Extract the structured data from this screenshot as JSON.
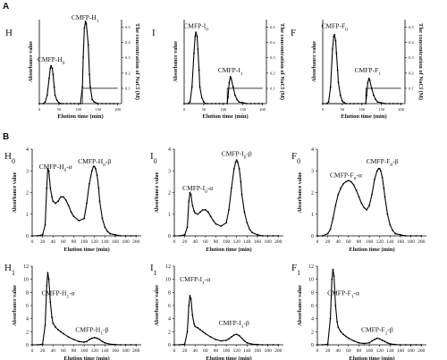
{
  "panels": [
    {
      "letter": "A"
    },
    {
      "letter": "B"
    }
  ],
  "chart_data": [
    {
      "type": "line",
      "panel": "A",
      "letter": "H",
      "title": "",
      "xlabel": "Elution time (min)",
      "ylabel": "Absorbance value",
      "y2label": "The concentration of NaCl (M)",
      "xticks": [
        "0",
        "50",
        "100",
        "150",
        "200"
      ],
      "y2ticks": [
        "0.5",
        "0.4",
        "0.3",
        "0.2",
        "0.1"
      ],
      "xlim": [
        0,
        210
      ],
      "ylim": [
        0,
        1
      ],
      "y2lim": [
        0,
        0.55
      ],
      "series": [
        {
          "x": [
            0,
            10,
            15,
            20,
            25,
            28,
            30,
            33,
            35,
            38,
            40,
            45,
            50,
            55,
            60,
            70,
            80,
            90,
            100,
            105,
            110,
            112,
            115,
            118,
            120,
            125,
            128,
            130,
            135,
            140,
            150,
            160,
            170,
            180,
            190,
            200
          ],
          "y": [
            0,
            0,
            0.02,
            0.1,
            0.3,
            0.42,
            0.45,
            0.42,
            0.35,
            0.2,
            0.1,
            0.04,
            0.01,
            0,
            0,
            0,
            0,
            0,
            0,
            0,
            0.2,
            0.55,
            0.9,
            0.98,
            0.95,
            0.7,
            0.35,
            0.2,
            0.05,
            0.02,
            0,
            0,
            0,
            0,
            0,
            0
          ]
        }
      ],
      "salt": {
        "x": [
          0,
          110,
          110,
          200
        ],
        "y": [
          0,
          0,
          0.1,
          0.1
        ]
      },
      "annotations": [
        {
          "text": "CMFP-H",
          "sub": "0",
          "x": 30,
          "y": 0.5
        },
        {
          "text": "CMFP-H",
          "sub": "1",
          "x": 117,
          "y": 1.0
        }
      ]
    },
    {
      "type": "line",
      "panel": "A",
      "letter": "I",
      "title": "",
      "xlabel": "Elution time (min)",
      "ylabel": "Absorbance value",
      "y2label": "The concentration of NaCl (M)",
      "xticks": [
        "0",
        "50",
        "100",
        "150",
        "200"
      ],
      "y2ticks": [
        "0.5",
        "0.4",
        "0.3",
        "0.2",
        "0.1"
      ],
      "xlim": [
        0,
        210
      ],
      "ylim": [
        0,
        1
      ],
      "y2lim": [
        0,
        0.55
      ],
      "series": [
        {
          "x": [
            0,
            10,
            15,
            20,
            25,
            28,
            30,
            33,
            35,
            38,
            40,
            45,
            50,
            55,
            60,
            70,
            80,
            90,
            100,
            110,
            112,
            115,
            118,
            120,
            125,
            130,
            135,
            140,
            150,
            160,
            170,
            180,
            190,
            200
          ],
          "y": [
            0,
            0,
            0.02,
            0.2,
            0.6,
            0.8,
            0.85,
            0.8,
            0.65,
            0.4,
            0.2,
            0.07,
            0.02,
            0,
            0,
            0,
            0,
            0,
            0,
            0,
            0.08,
            0.25,
            0.32,
            0.3,
            0.2,
            0.1,
            0.05,
            0.02,
            0.01,
            0,
            0,
            0,
            0,
            0
          ]
        }
      ],
      "salt": {
        "x": [
          0,
          110,
          110,
          200
        ],
        "y": [
          0,
          0,
          0.1,
          0.1
        ]
      },
      "annotations": [
        {
          "text": "CMFP-I",
          "sub": "0",
          "x": 30,
          "y": 0.9
        },
        {
          "text": "CMFP-I",
          "sub": "1",
          "x": 118,
          "y": 0.37
        }
      ]
    },
    {
      "type": "line",
      "panel": "A",
      "letter": "F",
      "title": "",
      "xlabel": "Elution time (min)",
      "ylabel": "Absorbance value",
      "y2label": "The concentration of NaCl (M)",
      "xticks": [
        "0",
        "50",
        "100",
        "150",
        "200"
      ],
      "y2ticks": [
        "0.5",
        "0.4",
        "0.3",
        "0.2",
        "0.1"
      ],
      "xlim": [
        0,
        210
      ],
      "ylim": [
        0,
        1
      ],
      "y2lim": [
        0,
        0.55
      ],
      "series": [
        {
          "x": [
            0,
            10,
            15,
            20,
            25,
            28,
            30,
            33,
            35,
            38,
            40,
            45,
            50,
            55,
            60,
            70,
            80,
            90,
            100,
            110,
            112,
            115,
            118,
            120,
            125,
            130,
            135,
            140,
            150,
            160,
            170,
            180,
            190,
            200
          ],
          "y": [
            0,
            0,
            0.02,
            0.2,
            0.65,
            0.8,
            0.82,
            0.75,
            0.6,
            0.4,
            0.25,
            0.1,
            0.03,
            0.01,
            0,
            0,
            0,
            0,
            0,
            0,
            0.1,
            0.25,
            0.3,
            0.28,
            0.18,
            0.1,
            0.05,
            0.02,
            0.01,
            0,
            0,
            0,
            0,
            0
          ]
        }
      ],
      "salt": {
        "x": [
          0,
          110,
          110,
          200
        ],
        "y": [
          0,
          0,
          0.1,
          0.1
        ]
      },
      "annotations": [
        {
          "text": "CMFP-F",
          "sub": "0",
          "x": 30,
          "y": 0.9
        },
        {
          "text": "CMFP-F",
          "sub": "1",
          "x": 115,
          "y": 0.37
        }
      ]
    },
    {
      "type": "line",
      "panel": "B",
      "letter": "H",
      "letter_sub": "0",
      "xlabel": "Elution time (min)",
      "ylabel": "Absorbance value",
      "xlim": [
        0,
        210
      ],
      "ylim": [
        0,
        4
      ],
      "xticks": [
        0,
        20,
        40,
        60,
        80,
        100,
        120,
        140,
        160,
        180,
        200
      ],
      "yticks": [
        0,
        1,
        2,
        3,
        4
      ],
      "series": [
        {
          "x": [
            0,
            10,
            20,
            25,
            28,
            30,
            32,
            35,
            38,
            40,
            45,
            50,
            55,
            60,
            65,
            70,
            75,
            80,
            90,
            100,
            105,
            110,
            115,
            118,
            120,
            122,
            125,
            128,
            130,
            135,
            140,
            145,
            150,
            160,
            170,
            180,
            190,
            200
          ],
          "y": [
            0,
            0,
            0.05,
            0.5,
            2.2,
            3.1,
            3.0,
            2.2,
            1.8,
            1.6,
            1.5,
            1.6,
            1.8,
            1.8,
            1.65,
            1.4,
            1.1,
            0.9,
            0.7,
            0.8,
            1.5,
            2.4,
            3.0,
            3.2,
            3.2,
            3.1,
            2.8,
            2.2,
            1.6,
            0.8,
            0.4,
            0.2,
            0.1,
            0.05,
            0,
            0,
            0,
            0
          ]
        }
      ],
      "annotations": [
        {
          "text": "CMFP-H",
          "sub": "0",
          "suffix": "-α",
          "x": 45,
          "y": 3.1
        },
        {
          "text": "CMFP-H",
          "sub": "0",
          "suffix": "-β",
          "x": 120,
          "y": 3.35
        }
      ]
    },
    {
      "type": "line",
      "panel": "B",
      "letter": "I",
      "letter_sub": "0",
      "xlabel": "Elution time (min)",
      "ylabel": "Absorbance value",
      "xlim": [
        0,
        210
      ],
      "ylim": [
        0,
        4
      ],
      "xticks": [
        0,
        20,
        40,
        60,
        80,
        100,
        120,
        140,
        160,
        180,
        200
      ],
      "yticks": [
        0,
        1,
        2,
        3,
        4
      ],
      "series": [
        {
          "x": [
            0,
            10,
            20,
            25,
            28,
            30,
            32,
            35,
            38,
            40,
            45,
            50,
            55,
            60,
            65,
            70,
            75,
            80,
            90,
            100,
            105,
            110,
            115,
            118,
            120,
            122,
            125,
            128,
            130,
            135,
            140,
            145,
            150,
            160,
            170,
            180,
            190,
            200
          ],
          "y": [
            0,
            0,
            0.05,
            0.4,
            1.6,
            2.0,
            1.9,
            1.4,
            1.15,
            1.05,
            1.0,
            1.1,
            1.2,
            1.2,
            1.1,
            0.9,
            0.7,
            0.55,
            0.45,
            0.6,
            1.2,
            2.2,
            3.1,
            3.4,
            3.5,
            3.4,
            3.1,
            2.5,
            1.9,
            1.1,
            0.6,
            0.3,
            0.15,
            0.05,
            0,
            0,
            0,
            0
          ]
        }
      ],
      "annotations": [
        {
          "text": "CMFP-I",
          "sub": "0",
          "suffix": "-α",
          "x": 45,
          "y": 2.1
        },
        {
          "text": "CMFP-I",
          "sub": "0",
          "suffix": "-β",
          "x": 120,
          "y": 3.7
        }
      ]
    },
    {
      "type": "line",
      "panel": "B",
      "letter": "F",
      "letter_sub": "0",
      "xlabel": "Elution time (min)",
      "ylabel": "Absorbance value",
      "xlim": [
        0,
        210
      ],
      "ylim": [
        0,
        4
      ],
      "xticks": [
        0,
        20,
        40,
        60,
        80,
        100,
        120,
        140,
        160,
        180,
        200
      ],
      "yticks": [
        0,
        1,
        2,
        3,
        4
      ],
      "series": [
        {
          "x": [
            0,
            10,
            20,
            25,
            30,
            35,
            40,
            45,
            50,
            55,
            60,
            65,
            70,
            75,
            80,
            85,
            90,
            95,
            100,
            105,
            110,
            115,
            118,
            120,
            122,
            125,
            128,
            130,
            135,
            140,
            145,
            150,
            160,
            170,
            180,
            190,
            200
          ],
          "y": [
            0,
            0,
            0.1,
            0.3,
            0.8,
            1.4,
            1.9,
            2.2,
            2.4,
            2.5,
            2.55,
            2.5,
            2.35,
            2.1,
            1.8,
            1.5,
            1.3,
            1.2,
            1.4,
            1.9,
            2.6,
            3.0,
            3.1,
            3.1,
            3.0,
            2.7,
            2.2,
            1.8,
            1.0,
            0.5,
            0.25,
            0.1,
            0.05,
            0,
            0,
            0,
            0
          ]
        }
      ],
      "annotations": [
        {
          "text": "CMFP-F",
          "sub": "0",
          "suffix": "-α",
          "x": 55,
          "y": 2.7
        },
        {
          "text": "CMFP-F",
          "sub": "0",
          "suffix": "-β",
          "x": 125,
          "y": 3.35
        }
      ]
    },
    {
      "type": "line",
      "panel": "B",
      "letter": "H",
      "letter_sub": "1",
      "xlabel": "Elution time (min)",
      "ylabel": "Absorbance value",
      "xlim": [
        0,
        210
      ],
      "ylim": [
        0,
        12
      ],
      "xticks": [
        0,
        20,
        40,
        60,
        80,
        100,
        120,
        140,
        160,
        180,
        200
      ],
      "yticks": [
        0,
        2,
        4,
        6,
        8,
        10,
        12
      ],
      "series": [
        {
          "x": [
            0,
            10,
            20,
            25,
            28,
            30,
            32,
            35,
            38,
            40,
            45,
            50,
            55,
            60,
            70,
            80,
            90,
            100,
            105,
            110,
            115,
            120,
            125,
            130,
            135,
            140,
            150,
            160,
            170,
            180,
            190,
            200
          ],
          "y": [
            0,
            0,
            0.1,
            3,
            9,
            11,
            10,
            6.5,
            4.2,
            3.3,
            2.7,
            2.3,
            2.0,
            1.7,
            1.2,
            0.8,
            0.5,
            0.4,
            0.5,
            0.8,
            1.0,
            1.1,
            1.0,
            0.8,
            0.5,
            0.3,
            0.1,
            0.05,
            0,
            0,
            0,
            0
          ]
        }
      ],
      "annotations": [
        {
          "text": "CMFP-H",
          "sub": "1",
          "suffix": "-α",
          "x": 50,
          "y": 7.6
        },
        {
          "text": "CMFP-H",
          "sub": "1",
          "suffix": "-β",
          "x": 115,
          "y": 2.0
        }
      ]
    },
    {
      "type": "line",
      "panel": "B",
      "letter": "I",
      "letter_sub": "1",
      "xlabel": "Elution time (min)",
      "ylabel": "Absorbance value",
      "xlim": [
        0,
        210
      ],
      "ylim": [
        0,
        12
      ],
      "xticks": [
        0,
        20,
        40,
        60,
        80,
        100,
        120,
        140,
        160,
        180,
        200
      ],
      "yticks": [
        0,
        2,
        4,
        6,
        8,
        10,
        12
      ],
      "series": [
        {
          "x": [
            0,
            10,
            20,
            25,
            28,
            30,
            32,
            35,
            38,
            40,
            45,
            50,
            55,
            60,
            70,
            80,
            90,
            100,
            105,
            110,
            115,
            120,
            125,
            130,
            135,
            140,
            150,
            160,
            170,
            180,
            190,
            200
          ],
          "y": [
            0,
            0,
            0.1,
            2,
            6,
            7.5,
            7,
            4.5,
            3.2,
            2.8,
            2.6,
            2.3,
            2.0,
            1.7,
            1.2,
            0.8,
            0.6,
            0.7,
            0.9,
            1.2,
            1.5,
            1.6,
            1.4,
            1.0,
            0.6,
            0.3,
            0.1,
            0.05,
            0,
            0,
            0,
            0
          ]
        }
      ],
      "annotations": [
        {
          "text": "CMFP-I",
          "sub": "1",
          "suffix": "-α",
          "x": 40,
          "y": 9.7
        },
        {
          "text": "CMFP-I",
          "sub": "1",
          "suffix": "-β",
          "x": 115,
          "y": 3.0
        }
      ]
    },
    {
      "type": "line",
      "panel": "B",
      "letter": "F",
      "letter_sub": "1",
      "xlabel": "Elution time (min)",
      "ylabel": "Absorbance value",
      "xlim": [
        0,
        210
      ],
      "ylim": [
        0,
        12
      ],
      "xticks": [
        0,
        20,
        40,
        60,
        80,
        100,
        120,
        140,
        160,
        180,
        200
      ],
      "yticks": [
        0,
        2,
        4,
        6,
        8,
        10,
        12
      ],
      "series": [
        {
          "x": [
            0,
            10,
            20,
            25,
            28,
            30,
            32,
            35,
            38,
            40,
            45,
            50,
            55,
            60,
            70,
            80,
            90,
            100,
            105,
            110,
            115,
            120,
            125,
            130,
            135,
            140,
            150,
            160,
            170,
            180,
            190,
            200
          ],
          "y": [
            0,
            0,
            0.1,
            4,
            10,
            11.5,
            10.5,
            6,
            3.5,
            2.7,
            2.0,
            1.6,
            1.3,
            1.0,
            0.6,
            0.3,
            0.2,
            0.3,
            0.6,
            0.8,
            1.0,
            0.9,
            0.7,
            0.5,
            0.3,
            0.15,
            0.05,
            0,
            0,
            0,
            0,
            0
          ]
        }
      ],
      "annotations": [
        {
          "text": "CMFP-F",
          "sub": "1",
          "suffix": "-α",
          "x": 50,
          "y": 7.6
        },
        {
          "text": "CMFP-F",
          "sub": "1",
          "suffix": "-β",
          "x": 115,
          "y": 2.0
        }
      ]
    }
  ]
}
